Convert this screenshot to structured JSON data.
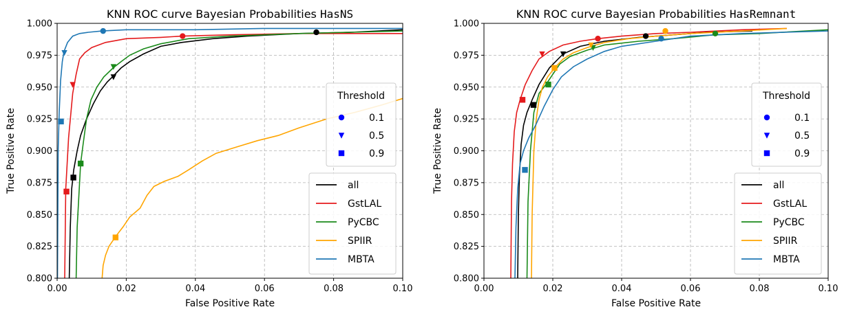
{
  "chart_data": [
    {
      "type": "line",
      "title": "KNN ROC curve Bayesian Probabilities",
      "title_code": "HasNS",
      "xlabel": "False Positive Rate",
      "ylabel": "True Positive Rate",
      "xlim": [
        0.0,
        0.1
      ],
      "ylim": [
        0.8,
        1.0
      ],
      "xticks": [
        "0.00",
        "0.02",
        "0.04",
        "0.06",
        "0.08",
        "0.10"
      ],
      "yticks": [
        "0.800",
        "0.825",
        "0.850",
        "0.875",
        "0.900",
        "0.925",
        "0.950",
        "0.975",
        "1.000"
      ],
      "grid": true,
      "series_legend_position": "lower-right",
      "threshold_legend_position": "center-right",
      "threshold_legend": {
        "title": "Threshold",
        "items": [
          {
            "label": "0.1",
            "marker": "circle"
          },
          {
            "label": "0.5",
            "marker": "triangle-down"
          },
          {
            "label": "0.9",
            "marker": "square"
          }
        ]
      },
      "series": [
        {
          "name": "all",
          "color": "#000000",
          "x": [
            0.0035,
            0.0038,
            0.0042,
            0.0048,
            0.0058,
            0.0068,
            0.0085,
            0.0105,
            0.0125,
            0.0145,
            0.016,
            0.0185,
            0.021,
            0.025,
            0.03,
            0.036,
            0.045,
            0.055,
            0.07,
            0.085,
            0.1
          ],
          "y": [
            0.8,
            0.84,
            0.87,
            0.885,
            0.9,
            0.912,
            0.925,
            0.937,
            0.947,
            0.954,
            0.958,
            0.965,
            0.97,
            0.976,
            0.982,
            0.985,
            0.988,
            0.99,
            0.992,
            0.993,
            0.995
          ],
          "markers": [
            {
              "t": "0.1",
              "x": 0.075,
              "y": 0.993
            },
            {
              "t": "0.5",
              "x": 0.0163,
              "y": 0.958
            },
            {
              "t": "0.9",
              "x": 0.0047,
              "y": 0.879
            }
          ]
        },
        {
          "name": "GstLAL",
          "color": "#e41a1c",
          "x": [
            0.0022,
            0.0025,
            0.0033,
            0.0045,
            0.0055,
            0.0065,
            0.008,
            0.01,
            0.014,
            0.02,
            0.03,
            0.036,
            0.05,
            0.07,
            0.1
          ],
          "y": [
            0.8,
            0.87,
            0.91,
            0.945,
            0.96,
            0.972,
            0.977,
            0.981,
            0.985,
            0.988,
            0.989,
            0.99,
            0.991,
            0.992,
            0.992
          ],
          "markers": [
            {
              "t": "0.1",
              "x": 0.0363,
              "y": 0.99
            },
            {
              "t": "0.5",
              "x": 0.0045,
              "y": 0.952
            },
            {
              "t": "0.9",
              "x": 0.0027,
              "y": 0.868
            }
          ]
        },
        {
          "name": "PyCBC",
          "color": "#1a8a1a",
          "x": [
            0.0055,
            0.0058,
            0.0062,
            0.0068,
            0.0075,
            0.0085,
            0.0098,
            0.0115,
            0.0135,
            0.0162,
            0.0185,
            0.021,
            0.025,
            0.03,
            0.038,
            0.05,
            0.07,
            0.1
          ],
          "y": [
            0.8,
            0.84,
            0.86,
            0.89,
            0.905,
            0.925,
            0.94,
            0.95,
            0.958,
            0.965,
            0.97,
            0.975,
            0.98,
            0.984,
            0.988,
            0.99,
            0.992,
            0.994
          ],
          "markers": [
            {
              "t": "0.5",
              "x": 0.0163,
              "y": 0.966
            },
            {
              "t": "0.9",
              "x": 0.0068,
              "y": 0.89
            }
          ]
        },
        {
          "name": "SPIIR",
          "color": "#ffa500",
          "x": [
            0.013,
            0.0133,
            0.014,
            0.015,
            0.017,
            0.019,
            0.021,
            0.024,
            0.026,
            0.028,
            0.031,
            0.035,
            0.038,
            0.042,
            0.046,
            0.052,
            0.058,
            0.064,
            0.07,
            0.078,
            0.086,
            0.094,
            0.1
          ],
          "y": [
            0.8,
            0.81,
            0.818,
            0.825,
            0.833,
            0.84,
            0.848,
            0.855,
            0.865,
            0.872,
            0.876,
            0.88,
            0.885,
            0.892,
            0.898,
            0.903,
            0.908,
            0.912,
            0.918,
            0.925,
            0.93,
            0.936,
            0.941
          ],
          "markers": [
            {
              "t": "0.9",
              "x": 0.0169,
              "y": 0.832
            }
          ]
        },
        {
          "name": "MBTA",
          "color": "#1f77b4",
          "x": [
            0.0001,
            0.0003,
            0.0006,
            0.001,
            0.0015,
            0.002,
            0.003,
            0.0045,
            0.0065,
            0.009,
            0.013,
            0.02,
            0.04,
            0.06,
            0.1
          ],
          "y": [
            0.8,
            0.9,
            0.93,
            0.955,
            0.97,
            0.978,
            0.985,
            0.99,
            0.992,
            0.993,
            0.994,
            0.995,
            0.995,
            0.996,
            0.996
          ],
          "markers": [
            {
              "t": "0.1",
              "x": 0.0133,
              "y": 0.994
            },
            {
              "t": "0.5",
              "x": 0.0021,
              "y": 0.977
            },
            {
              "t": "0.9",
              "x": 0.0011,
              "y": 0.923
            }
          ]
        }
      ]
    },
    {
      "type": "line",
      "title": "KNN ROC curve Bayesian Probabilities",
      "title_code": "HasRemnant",
      "xlabel": "False Positive Rate",
      "ylabel": "True Positive Rate",
      "xlim": [
        0.0,
        0.1
      ],
      "ylim": [
        0.8,
        1.0
      ],
      "xticks": [
        "0.00",
        "0.02",
        "0.04",
        "0.06",
        "0.08",
        "0.10"
      ],
      "yticks": [
        "0.800",
        "0.825",
        "0.850",
        "0.875",
        "0.900",
        "0.925",
        "0.950",
        "0.975",
        "1.000"
      ],
      "grid": true,
      "series_legend_position": "lower-right",
      "threshold_legend_position": "center-right",
      "threshold_legend": {
        "title": "Threshold",
        "items": [
          {
            "label": "0.1",
            "marker": "circle"
          },
          {
            "label": "0.5",
            "marker": "triangle-down"
          },
          {
            "label": "0.9",
            "marker": "square"
          }
        ]
      },
      "series": [
        {
          "name": "all",
          "color": "#000000",
          "x": [
            0.0098,
            0.01,
            0.0103,
            0.0108,
            0.0115,
            0.0125,
            0.014,
            0.016,
            0.019,
            0.023,
            0.028,
            0.035,
            0.045,
            0.055,
            0.065,
            0.078
          ],
          "y": [
            0.8,
            0.85,
            0.88,
            0.905,
            0.92,
            0.93,
            0.94,
            0.952,
            0.965,
            0.976,
            0.982,
            0.986,
            0.989,
            0.991,
            0.993,
            0.994
          ],
          "markers": [
            {
              "t": "0.1",
              "x": 0.047,
              "y": 0.99
            },
            {
              "t": "0.5",
              "x": 0.023,
              "y": 0.976
            },
            {
              "t": "0.9",
              "x": 0.0144,
              "y": 0.936
            }
          ]
        },
        {
          "name": "GstLAL",
          "color": "#e41a1c",
          "x": [
            0.0078,
            0.008,
            0.0083,
            0.0088,
            0.0095,
            0.0105,
            0.012,
            0.014,
            0.016,
            0.019,
            0.023,
            0.028,
            0.033,
            0.04,
            0.05,
            0.06,
            0.075,
            0.088
          ],
          "y": [
            0.8,
            0.86,
            0.89,
            0.915,
            0.93,
            0.94,
            0.952,
            0.963,
            0.972,
            0.978,
            0.983,
            0.986,
            0.988,
            0.99,
            0.992,
            0.993,
            0.995,
            0.996
          ],
          "markers": [
            {
              "t": "0.1",
              "x": 0.0331,
              "y": 0.988
            },
            {
              "t": "0.5",
              "x": 0.0169,
              "y": 0.976
            },
            {
              "t": "0.9",
              "x": 0.0112,
              "y": 0.94
            }
          ]
        },
        {
          "name": "PyCBC",
          "color": "#1a8a1a",
          "x": [
            0.0125,
            0.0128,
            0.0135,
            0.0145,
            0.016,
            0.018,
            0.02,
            0.022,
            0.025,
            0.03,
            0.035,
            0.045,
            0.055,
            0.067,
            0.08,
            0.1
          ],
          "y": [
            0.8,
            0.86,
            0.9,
            0.93,
            0.945,
            0.952,
            0.96,
            0.968,
            0.974,
            0.979,
            0.983,
            0.986,
            0.988,
            0.991,
            0.992,
            0.995
          ],
          "markers": [
            {
              "t": "0.1",
              "x": 0.0672,
              "y": 0.992
            },
            {
              "t": "0.5",
              "x": 0.0317,
              "y": 0.981
            },
            {
              "t": "0.9",
              "x": 0.0187,
              "y": 0.952
            }
          ]
        },
        {
          "name": "SPIIR",
          "color": "#ffa500",
          "x": [
            0.0138,
            0.014,
            0.0145,
            0.0152,
            0.016,
            0.017,
            0.0185,
            0.0205,
            0.023,
            0.026,
            0.03,
            0.035,
            0.042,
            0.05,
            0.06,
            0.075,
            0.088
          ],
          "y": [
            0.8,
            0.85,
            0.9,
            0.925,
            0.94,
            0.95,
            0.958,
            0.965,
            0.972,
            0.977,
            0.981,
            0.985,
            0.988,
            0.99,
            0.992,
            0.994,
            0.996
          ],
          "markers": [
            {
              "t": "0.1",
              "x": 0.0527,
              "y": 0.994
            },
            {
              "t": "0.5",
              "x": 0.0311,
              "y": 0.983
            },
            {
              "t": "0.9",
              "x": 0.0205,
              "y": 0.965
            }
          ]
        },
        {
          "name": "MBTA",
          "color": "#1f77b4",
          "x": [
            0.009,
            0.0093,
            0.0098,
            0.0105,
            0.0115,
            0.013,
            0.015,
            0.0175,
            0.02,
            0.0225,
            0.026,
            0.03,
            0.035,
            0.04,
            0.05,
            0.06,
            0.075,
            0.1
          ],
          "y": [
            0.8,
            0.84,
            0.87,
            0.89,
            0.9,
            0.91,
            0.92,
            0.935,
            0.948,
            0.958,
            0.966,
            0.972,
            0.978,
            0.982,
            0.986,
            0.99,
            0.992,
            0.994
          ],
          "markers": [
            {
              "t": "0.1",
              "x": 0.0515,
              "y": 0.988
            },
            {
              "t": "0.9",
              "x": 0.0119,
              "y": 0.885
            }
          ]
        }
      ]
    }
  ]
}
